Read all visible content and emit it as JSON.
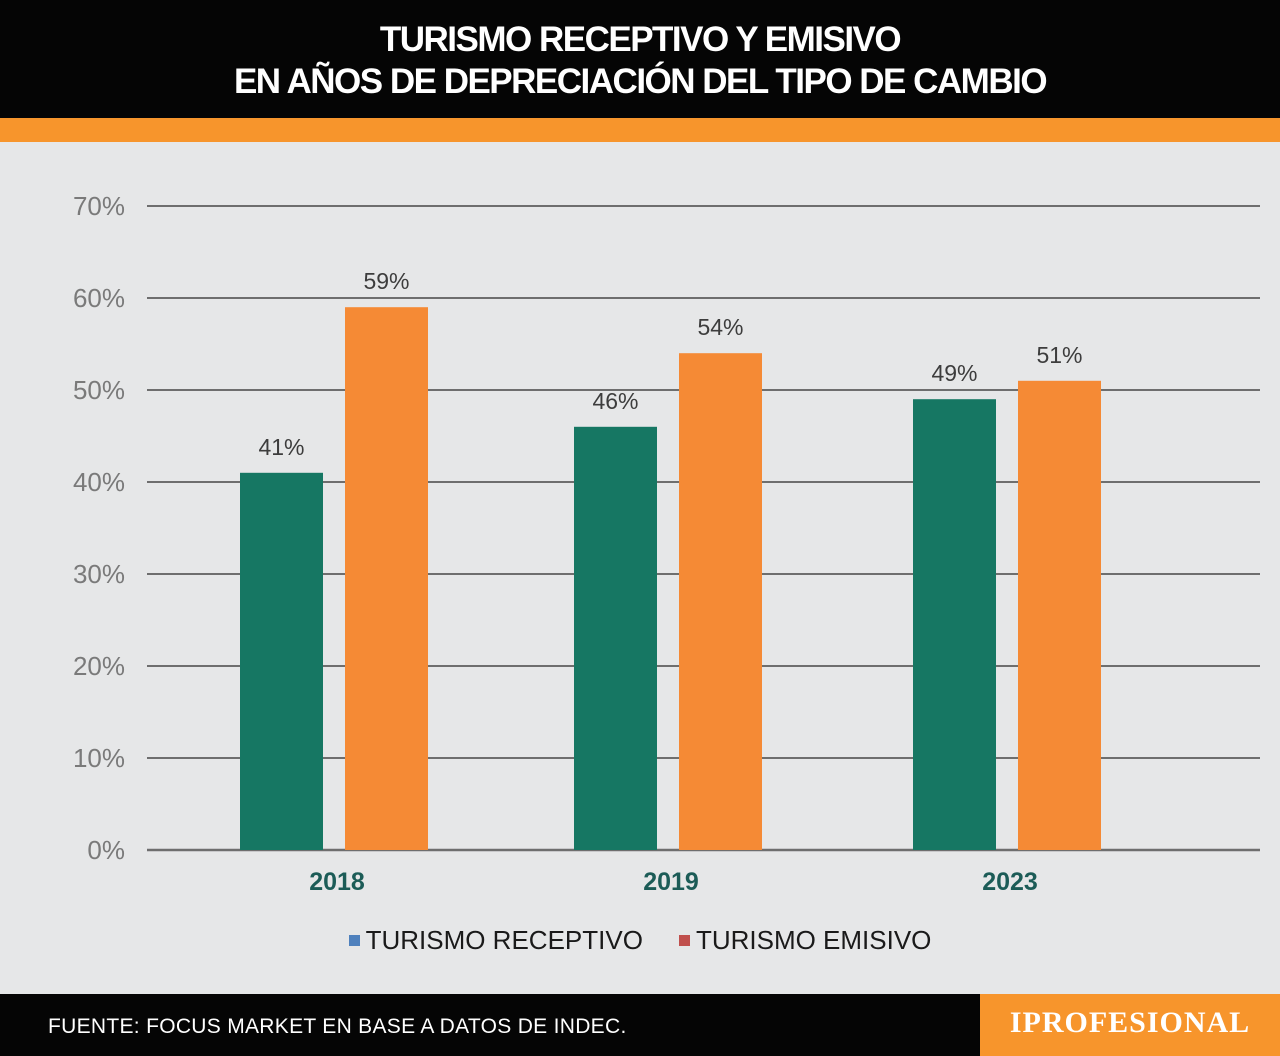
{
  "header": {
    "title_line1": "TURISMO RECEPTIVO Y EMISIVO",
    "title_line2": "EN AÑOS DE DEPRECIACIÓN DEL TIPO DE CAMBIO"
  },
  "footer": {
    "source": "FUENTE: FOCUS MARKET EN BASE A DATOS DE INDEC.",
    "logo": "IPROFESIONAL"
  },
  "colors": {
    "receptivo": "#167763",
    "emisivo": "#f58a35",
    "legend_receptivo_swatch": "#4f81bd",
    "legend_emisivo_swatch": "#c0504d",
    "accent": "#f7952c",
    "category_label": "#1c5c57"
  },
  "chart_data": {
    "type": "bar",
    "categories": [
      "2018",
      "2019",
      "2023"
    ],
    "series": [
      {
        "name": "TURISMO RECEPTIVO",
        "values": [
          41,
          46,
          49
        ],
        "labels": [
          "41%",
          "46%",
          "49%"
        ]
      },
      {
        "name": "TURISMO EMISIVO",
        "values": [
          59,
          54,
          51
        ],
        "labels": [
          "59%",
          "54%",
          "51%"
        ]
      }
    ],
    "ylim": [
      0,
      70
    ],
    "yticks": [
      0,
      10,
      20,
      30,
      40,
      50,
      60,
      70
    ],
    "ytick_labels": [
      "0%",
      "10%",
      "20%",
      "30%",
      "40%",
      "50%",
      "60%",
      "70%"
    ],
    "grid": true,
    "legend": "bottom"
  }
}
